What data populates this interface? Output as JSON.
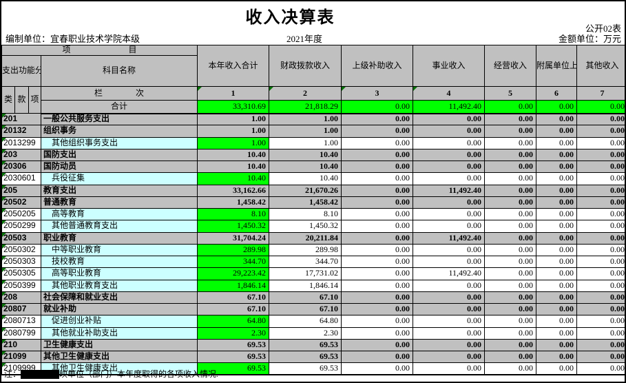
{
  "page": {
    "title": "收入决算表",
    "sheet_label": "公开02表",
    "prepared_by": "编制单位：宜春职业技术学院本级",
    "period": "2021年度",
    "unit_label": "金额单位：万元",
    "note_prefix": "注：",
    "note_suffix": "映单位（部门）本年度取得的各项收入情况."
  },
  "table": {
    "corner": {
      "project_label": "项　　　　　　　目",
      "code_label": "支出功能分类科目编码",
      "subject_label": "科目名称",
      "class_label": "类",
      "section_label": "款",
      "item_label": "项",
      "column_label": "栏　　　　次",
      "total_label": "合计"
    },
    "columns": [
      {
        "label": "本年收入合计",
        "num": "1",
        "marked": true
      },
      {
        "label": "财政拨款收入",
        "num": "2",
        "marked": true
      },
      {
        "label": "上级补助收入",
        "num": "3",
        "marked": true
      },
      {
        "label": "事业收入",
        "num": "4",
        "marked": true
      },
      {
        "label": "经营收入",
        "num": "5",
        "marked": false
      },
      {
        "label": "附属单位上缴收入",
        "num": "6",
        "marked": false
      },
      {
        "label": "其他收入",
        "num": "7",
        "marked": false
      }
    ],
    "total_values": [
      "33,310.69",
      "21,818.29",
      "0.00",
      "11,492.40",
      "0.00",
      "0.00",
      "0.00"
    ],
    "rows": [
      {
        "code": "201",
        "name": "一般公共服务支出",
        "type": "summary",
        "values": [
          "1.00",
          "1.00",
          "0.00",
          "0.00",
          "0.00",
          "0.00",
          "0.00"
        ]
      },
      {
        "code": "20132",
        "name": "组织事务",
        "type": "summary",
        "values": [
          "1.00",
          "1.00",
          "0.00",
          "0.00",
          "0.00",
          "0.00",
          "0.00"
        ]
      },
      {
        "code": "2013299",
        "name": "其他组织事务支出",
        "type": "detail",
        "values": [
          "1.00",
          "1.00",
          "0.00",
          "0.00",
          "0.00",
          "0.00",
          "0.00"
        ]
      },
      {
        "code": "203",
        "name": "国防支出",
        "type": "summary",
        "values": [
          "10.40",
          "10.40",
          "0.00",
          "0.00",
          "0.00",
          "0.00",
          "0.00"
        ]
      },
      {
        "code": "20306",
        "name": "国防动员",
        "type": "summary",
        "values": [
          "10.40",
          "10.40",
          "0.00",
          "0.00",
          "0.00",
          "0.00",
          "0.00"
        ]
      },
      {
        "code": "2030601",
        "name": "兵役征集",
        "type": "detail",
        "values": [
          "10.40",
          "10.40",
          "0.00",
          "0.00",
          "0.00",
          "0.00",
          "0.00"
        ]
      },
      {
        "code": "205",
        "name": "教育支出",
        "type": "summary",
        "values": [
          "33,162.66",
          "21,670.26",
          "0.00",
          "11,492.40",
          "0.00",
          "0.00",
          "0.00"
        ]
      },
      {
        "code": "20502",
        "name": "普通教育",
        "type": "summary",
        "values": [
          "1,458.42",
          "1,458.42",
          "0.00",
          "0.00",
          "0.00",
          "0.00",
          "0.00"
        ]
      },
      {
        "code": "2050205",
        "name": "高等教育",
        "type": "detail",
        "values": [
          "8.10",
          "8.10",
          "0.00",
          "0.00",
          "0.00",
          "0.00",
          "0.00"
        ]
      },
      {
        "code": "2050299",
        "name": "其他普通教育支出",
        "type": "detail",
        "values": [
          "1,450.32",
          "1,450.32",
          "0.00",
          "0.00",
          "0.00",
          "0.00",
          "0.00"
        ]
      },
      {
        "code": "20503",
        "name": "职业教育",
        "type": "summary",
        "values": [
          "31,704.24",
          "20,211.84",
          "0.00",
          "11,492.40",
          "0.00",
          "0.00",
          "0.00"
        ]
      },
      {
        "code": "2050302",
        "name": "中等职业教育",
        "type": "detail",
        "values": [
          "289.98",
          "289.98",
          "0.00",
          "0.00",
          "0.00",
          "0.00",
          "0.00"
        ]
      },
      {
        "code": "2050303",
        "name": "技校教育",
        "type": "detail",
        "values": [
          "344.70",
          "344.70",
          "0.00",
          "0.00",
          "0.00",
          "0.00",
          "0.00"
        ]
      },
      {
        "code": "2050305",
        "name": "高等职业教育",
        "type": "detail",
        "values": [
          "29,223.42",
          "17,731.02",
          "0.00",
          "11,492.40",
          "0.00",
          "0.00",
          "0.00"
        ]
      },
      {
        "code": "2050399",
        "name": "其他职业教育支出",
        "type": "detail",
        "values": [
          "1,846.14",
          "1,846.14",
          "0.00",
          "0.00",
          "0.00",
          "0.00",
          "0.00"
        ]
      },
      {
        "code": "208",
        "name": "社会保障和就业支出",
        "type": "summary",
        "values": [
          "67.10",
          "67.10",
          "0.00",
          "0.00",
          "0.00",
          "0.00",
          "0.00"
        ]
      },
      {
        "code": "20807",
        "name": "就业补助",
        "type": "summary",
        "values": [
          "67.10",
          "67.10",
          "0.00",
          "0.00",
          "0.00",
          "0.00",
          "0.00"
        ]
      },
      {
        "code": "2080713",
        "name": "促进创业补贴",
        "type": "detail",
        "values": [
          "64.80",
          "64.80",
          "0.00",
          "0.00",
          "0.00",
          "0.00",
          "0.00"
        ]
      },
      {
        "code": "2080799",
        "name": "其他就业补助支出",
        "type": "detail",
        "values": [
          "2.30",
          "2.30",
          "0.00",
          "0.00",
          "0.00",
          "0.00",
          "0.00"
        ]
      },
      {
        "code": "210",
        "name": "卫生健康支出",
        "type": "summary",
        "values": [
          "69.53",
          "69.53",
          "0.00",
          "0.00",
          "0.00",
          "0.00",
          "0.00"
        ]
      },
      {
        "code": "21099",
        "name": "其他卫生健康支出",
        "type": "summary",
        "values": [
          "69.53",
          "69.53",
          "0.00",
          "0.00",
          "0.00",
          "0.00",
          "0.00"
        ]
      },
      {
        "code": "2109999",
        "name": "其他卫生健康支出",
        "type": "detail",
        "values": [
          "69.53",
          "69.53",
          "0.00",
          "0.00",
          "0.00",
          "0.00",
          "0.00"
        ]
      }
    ]
  },
  "colors": {
    "summary_bg": "#C0C0C0",
    "detail_name_bg": "#CCFFFF",
    "highlight_bg": "#00FF00",
    "marker_triangle": "#067206"
  }
}
